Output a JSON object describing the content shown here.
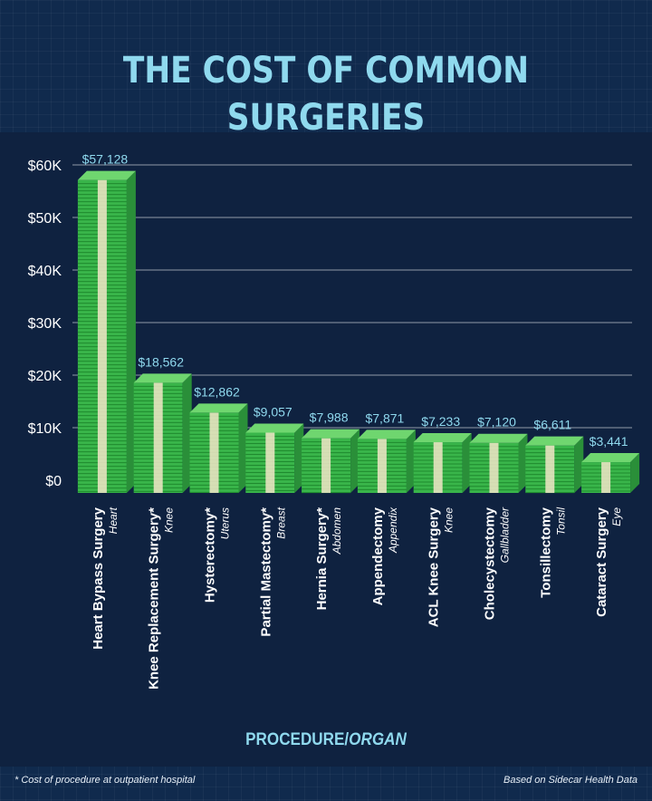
{
  "title": "THE COST OF COMMON SURGERIES",
  "x_axis_title": {
    "procedure": "PROCEDURE/",
    "organ": "ORGAN"
  },
  "footnote": "* Cost of procedure at outpatient hospital",
  "source": "Based on Sidecar Health Data",
  "colors": {
    "accent": "#8fd9ee",
    "bar": "#39b54a",
    "band": "#f2e6c8",
    "background": "#102a4d"
  },
  "chart_data": {
    "type": "bar",
    "categories": [
      "Heart Bypass Surgery",
      "Knee Replacement Surgery*",
      "Hysterectomy*",
      "Partial Mastectomy*",
      "Hernia Surgery*",
      "Appendectomy",
      "ACL Knee Surgery",
      "Cholecystectomy",
      "Tonsillectomy",
      "Cataract Surgery"
    ],
    "organs": [
      "Heart",
      "Knee",
      "Uterus",
      "Breast",
      "Abdomen",
      "Appendix",
      "Knee",
      "Gallbladder",
      "Tonsil",
      "Eye"
    ],
    "values": [
      57128,
      18562,
      12862,
      9057,
      7988,
      7871,
      7233,
      7120,
      6611,
      3441
    ],
    "value_labels": [
      "$57,128",
      "$18,562",
      "$12,862",
      "$9,057",
      "$7,988",
      "$7,871",
      "$7,233",
      "$7,120",
      "$6,611",
      "$3,441"
    ],
    "y_ticks": [
      0,
      10000,
      20000,
      30000,
      40000,
      50000,
      60000
    ],
    "y_tick_labels": [
      "$0",
      "$10K",
      "$20K",
      "$30K",
      "$40K",
      "$50K",
      "$60K"
    ],
    "ylim": [
      0,
      60000
    ],
    "grid": true
  }
}
